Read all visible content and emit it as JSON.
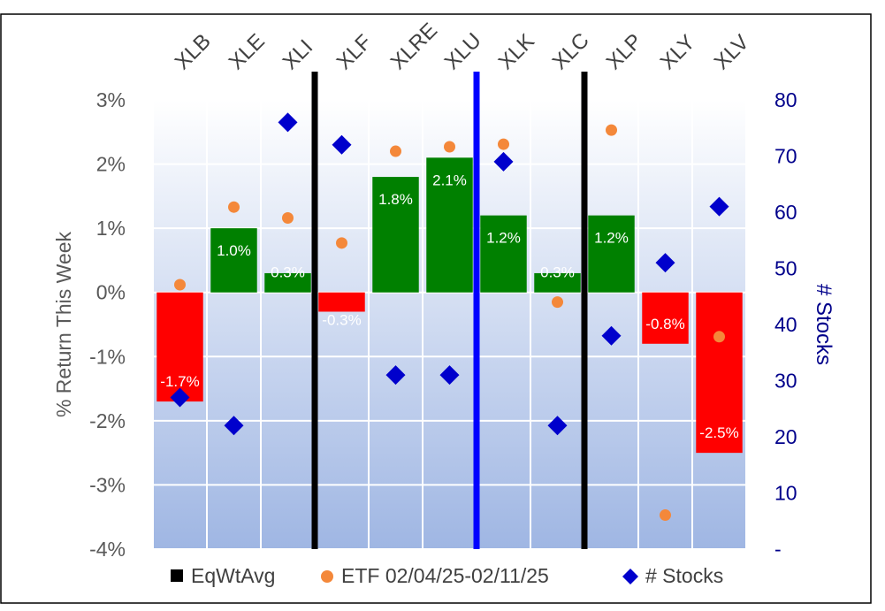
{
  "chart_data": {
    "type": "bar",
    "categories": [
      "XLB",
      "XLE",
      "XLI",
      "XLF",
      "XLRE",
      "XLU",
      "XLK",
      "XLC",
      "XLP",
      "XLY",
      "XLV"
    ],
    "series": [
      {
        "name": "EqWtAvg",
        "type": "bar",
        "axis": "left",
        "values": [
          -1.7,
          1.0,
          0.3,
          -0.3,
          1.8,
          2.1,
          1.2,
          0.3,
          1.2,
          -0.8,
          -2.5
        ],
        "labels": [
          "-1.7%",
          "1.0%",
          "0.3%",
          "-0.3%",
          "1.8%",
          "2.1%",
          "1.2%",
          "0.3%",
          "1.2%",
          "-0.8%",
          "-2.5%"
        ]
      },
      {
        "name": "ETF 02/04/25-02/11/25",
        "type": "scatter",
        "axis": "left",
        "marker": "circle",
        "values": [
          0.12,
          1.33,
          1.16,
          0.77,
          2.2,
          2.27,
          2.31,
          -0.15,
          2.53,
          -3.47,
          -0.69
        ]
      },
      {
        "name": "# Stocks",
        "type": "scatter",
        "axis": "right",
        "marker": "diamond",
        "values": [
          27,
          22,
          76,
          72,
          31,
          31,
          69,
          22,
          38,
          51,
          61
        ]
      }
    ],
    "y_left": {
      "label": "% Return This Week",
      "min": -4,
      "max": 3,
      "ticks": [
        "-4%",
        "-3%",
        "-2%",
        "-1%",
        "0%",
        "1%",
        "2%",
        "3%"
      ]
    },
    "y_right": {
      "label": "# Stocks",
      "min": 0,
      "max": 80,
      "ticks": [
        "-",
        "10",
        "20",
        "30",
        "40",
        "50",
        "60",
        "70",
        "80"
      ]
    },
    "dividers": [
      {
        "after_category": "XLI",
        "color": "#000000"
      },
      {
        "after_category": "XLU",
        "color": "#0000ff"
      },
      {
        "after_category": "XLC",
        "color": "#000000"
      }
    ],
    "legend": {
      "position": "bottom",
      "items": [
        "EqWtAvg",
        "ETF 02/04/25-02/11/25",
        "# Stocks"
      ]
    },
    "grid": true,
    "colors": {
      "positive": "#008000",
      "negative": "#ff0000",
      "etf": "#f4883a",
      "stocks": "#0000cc",
      "right_axis_text": "#00008b"
    }
  }
}
